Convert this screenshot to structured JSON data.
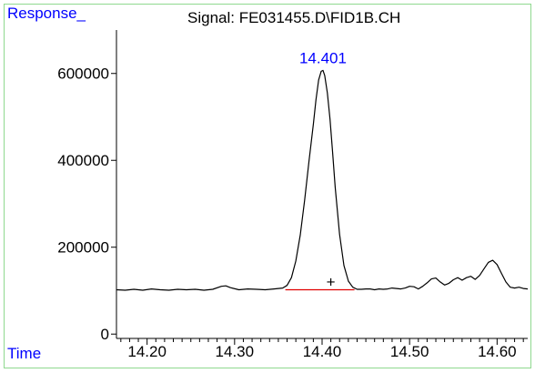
{
  "chart_data": {
    "type": "line",
    "title": "Signal: FE031455.D\\FID1B.CH",
    "ylabel": "Response_",
    "xlabel": "Time",
    "xlim": [
      14.165,
      14.635
    ],
    "ylim": [
      -10000,
      700000
    ],
    "x_ticks": [
      {
        "value": 14.2,
        "label": "14.20"
      },
      {
        "value": 14.3,
        "label": "14.30"
      },
      {
        "value": 14.4,
        "label": "14.40"
      },
      {
        "value": 14.5,
        "label": "14.50"
      },
      {
        "value": 14.6,
        "label": "14.60"
      }
    ],
    "y_ticks": [
      {
        "value": 0,
        "label": "0"
      },
      {
        "value": 200000,
        "label": "200000"
      },
      {
        "value": 400000,
        "label": "400000"
      },
      {
        "value": 600000,
        "label": "600000"
      }
    ],
    "series": [
      {
        "color": "#000000",
        "x": [
          14.165,
          14.175,
          14.185,
          14.195,
          14.205,
          14.215,
          14.225,
          14.235,
          14.245,
          14.255,
          14.265,
          14.275,
          14.285,
          14.29,
          14.295,
          14.305,
          14.315,
          14.325,
          14.335,
          14.345,
          14.355,
          14.36,
          14.365,
          14.37,
          14.375,
          14.38,
          14.385,
          14.39,
          14.393,
          14.396,
          14.399,
          14.401,
          14.403,
          14.406,
          14.409,
          14.412,
          14.415,
          14.42,
          14.425,
          14.43,
          14.435,
          14.44,
          14.445,
          14.45,
          14.455,
          14.46,
          14.465,
          14.47,
          14.475,
          14.48,
          14.485,
          14.49,
          14.495,
          14.5,
          14.505,
          14.51,
          14.515,
          14.52,
          14.525,
          14.53,
          14.535,
          14.54,
          14.545,
          14.55,
          14.555,
          14.56,
          14.565,
          14.57,
          14.575,
          14.58,
          14.585,
          14.59,
          14.595,
          14.6,
          14.605,
          14.61,
          14.615,
          14.62,
          14.625,
          14.63,
          14.635
        ],
        "y": [
          102000,
          101000,
          103000,
          101000,
          104000,
          102000,
          101000,
          103000,
          102000,
          103000,
          101000,
          103000,
          110000,
          111000,
          107000,
          102000,
          104000,
          103000,
          102000,
          104000,
          106000,
          112000,
          130000,
          168000,
          228000,
          308000,
          398000,
          483000,
          540000,
          585000,
          605000,
          607000,
          595000,
          555000,
          495000,
          420000,
          338000,
          230000,
          158000,
          122000,
          108000,
          103000,
          103000,
          104000,
          104000,
          102000,
          104000,
          103000,
          104000,
          106000,
          105000,
          104000,
          106000,
          110000,
          109000,
          104000,
          110000,
          118000,
          127000,
          129000,
          120000,
          113000,
          117000,
          125000,
          130000,
          124000,
          130000,
          133000,
          126000,
          135000,
          150000,
          165000,
          170000,
          160000,
          140000,
          120000,
          108000,
          106000,
          108000,
          105000,
          104000
        ]
      },
      {
        "color": "#e00000",
        "x": [
          14.358,
          14.437
        ],
        "y": [
          102000,
          102000
        ]
      }
    ],
    "annotations": [
      {
        "text": "14.401",
        "x": 14.401,
        "y": 607000,
        "color": "#0000ff"
      }
    ],
    "markers": [
      {
        "symbol": "+",
        "x": 14.41,
        "y": 121000
      }
    ],
    "grid": false,
    "legend": "none"
  }
}
